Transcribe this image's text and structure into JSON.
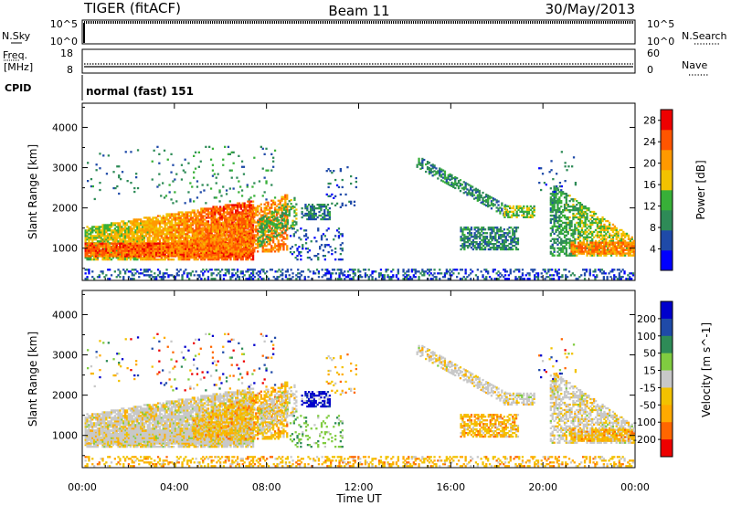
{
  "header": {
    "radar": "TIGER (fitACF)",
    "beam": "Beam 11",
    "date": "30/May/2013"
  },
  "nsky_panel": {
    "left_label": "N.Sky",
    "left_ticks": [
      "10^5",
      "10^0"
    ],
    "right_label": "N.Search",
    "right_ticks": [
      "10^5",
      "10^0"
    ]
  },
  "freq_panel": {
    "left_label_line1": "Freq.",
    "left_label_line2": "[MHz]",
    "left_ticks": [
      "18",
      "8"
    ],
    "right_label": "Nave",
    "right_ticks": [
      "60",
      "0"
    ]
  },
  "cpid_panel": {
    "label": "CPID",
    "value": "normal (fast) 151"
  },
  "colors": {
    "power": [
      "#0000ff",
      "#1f4aa8",
      "#2e8b57",
      "#38b038",
      "#f2c200",
      "#ff9900",
      "#ff5500",
      "#ee0000"
    ],
    "velocity": [
      "#ee0000",
      "#ff6600",
      "#ffaa00",
      "#f2c200",
      "#c8c8c8",
      "#80cc40",
      "#2e8b57",
      "#1f4aa8",
      "#0000cc"
    ]
  },
  "chart_data": [
    {
      "type": "heatmap",
      "panel": "power",
      "ylabel": "Slant Range [km]",
      "yticks": [
        1000,
        2000,
        3000,
        4000
      ],
      "ylim": [
        200,
        4600
      ],
      "xlim_hours": [
        0,
        24
      ],
      "colorbar": {
        "label": "Power [dB]",
        "ticks": [
          4,
          8,
          12,
          16,
          20,
          24,
          28
        ],
        "range": [
          0,
          30
        ]
      }
    },
    {
      "type": "heatmap",
      "panel": "velocity",
      "ylabel": "Slant Range [km]",
      "yticks": [
        1000,
        2000,
        3000,
        4000
      ],
      "ylim": [
        200,
        4600
      ],
      "xlim_hours": [
        0,
        24
      ],
      "colorbar": {
        "label": "Velocity [m s^-1]",
        "ticks": [
          "200",
          "100",
          "50",
          "15",
          "-15",
          "-50",
          "-100",
          "-200"
        ]
      }
    }
  ],
  "time_axis": {
    "label": "Time UT",
    "ticks": [
      "00:00",
      "04:00",
      "08:00",
      "12:00",
      "16:00",
      "20:00",
      "00:00"
    ]
  }
}
